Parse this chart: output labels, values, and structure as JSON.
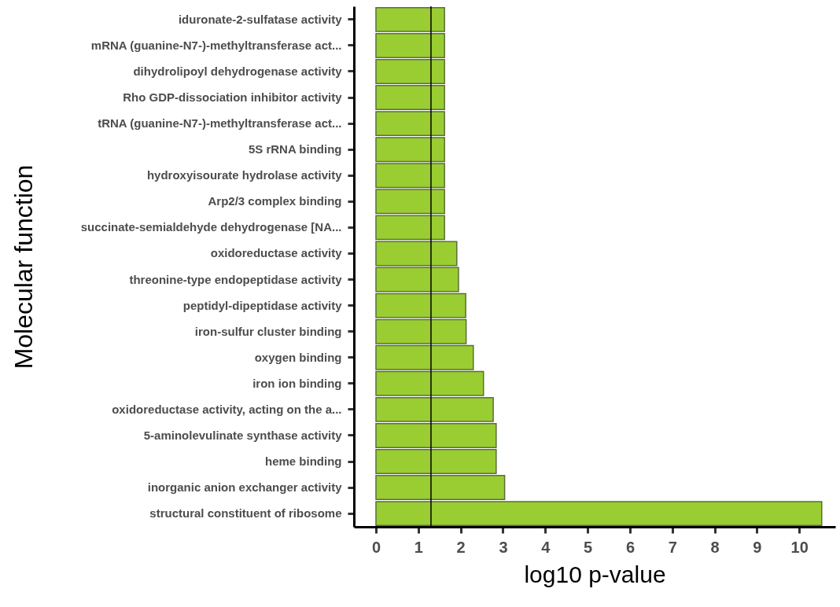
{
  "chart_data": {
    "type": "bar",
    "orientation": "horizontal",
    "xlabel": "log10 p-value",
    "ylabel": "Molecular function",
    "categories": [
      "iduronate-2-sulfatase activity",
      "mRNA (guanine-N7-)-methyltransferase act...",
      "dihydrolipoyl dehydrogenase activity",
      "Rho GDP-dissociation inhibitor activity",
      "tRNA (guanine-N7-)-methyltransferase act...",
      "5S rRNA binding",
      "hydroxyisourate hydrolase activity",
      "Arp2/3 complex binding",
      "succinate-semialdehyde dehydrogenase [NA...",
      "oxidoreductase activity",
      "threonine-type endopeptidase activity",
      "peptidyl-dipeptidase activity",
      "iron-sulfur cluster binding",
      "oxygen binding",
      "iron ion binding",
      "oxidoreductase activity, acting on the a...",
      "5-aminolevulinate synthase activity",
      "heme binding",
      "inorganic anion exchanger activity",
      "structural constituent of ribosome"
    ],
    "values": [
      1.62,
      1.62,
      1.62,
      1.62,
      1.62,
      1.62,
      1.62,
      1.62,
      1.62,
      1.91,
      1.95,
      2.12,
      2.13,
      2.3,
      2.54,
      2.77,
      2.84,
      2.84,
      3.04,
      10.53
    ],
    "color": "#9acd32",
    "xlim": [
      -0.52,
      10.85
    ],
    "xticks": [
      0,
      1,
      2,
      3,
      4,
      5,
      6,
      7,
      8,
      9,
      10
    ],
    "ref_lines": [
      {
        "axis": "x",
        "value": 1.3,
        "color": "#000000"
      }
    ],
    "grid": false
  }
}
